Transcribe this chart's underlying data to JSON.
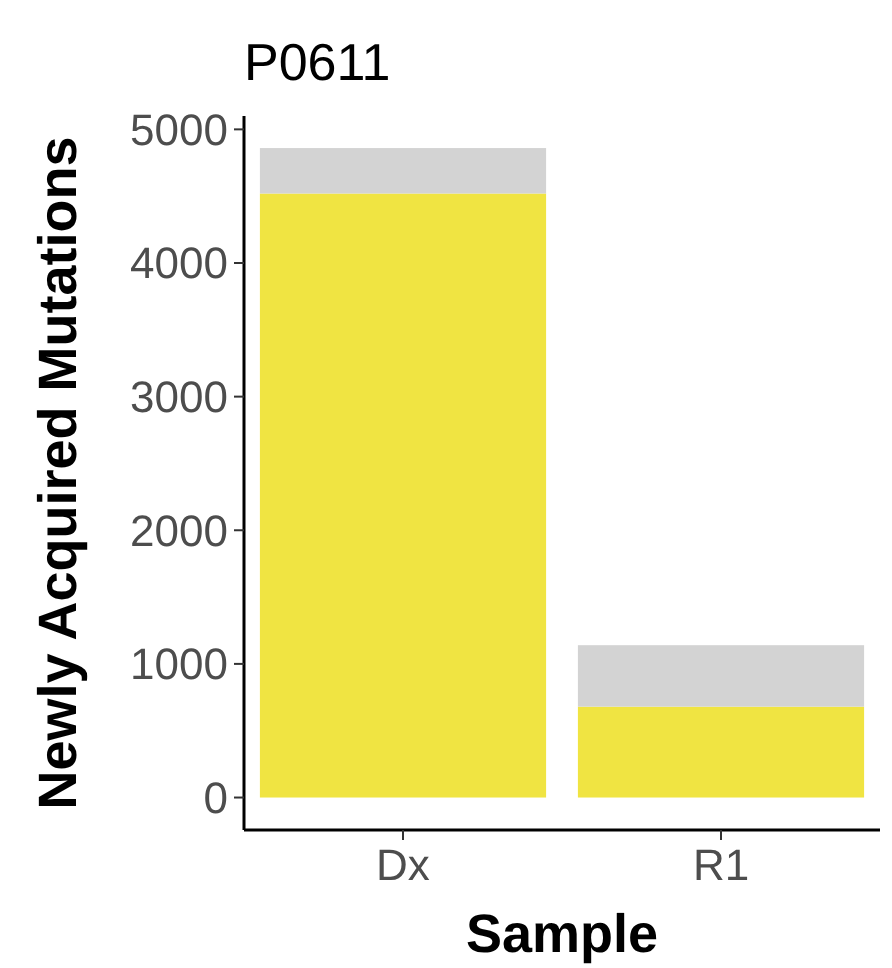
{
  "chart_data": {
    "type": "bar",
    "title": "P0611",
    "xlabel": "Sample",
    "ylabel": "Newly Acquired Mutations",
    "categories": [
      "Dx",
      "R1"
    ],
    "stacked": true,
    "series": [
      {
        "color": "#f0e442",
        "values": [
          4520,
          680
        ]
      },
      {
        "color": "#d3d3d3",
        "values": [
          340,
          460
        ]
      }
    ],
    "ylim": [
      -243,
      5100
    ],
    "yticks": [
      0,
      1000,
      2000,
      3000,
      4000,
      5000
    ],
    "grid": false
  }
}
